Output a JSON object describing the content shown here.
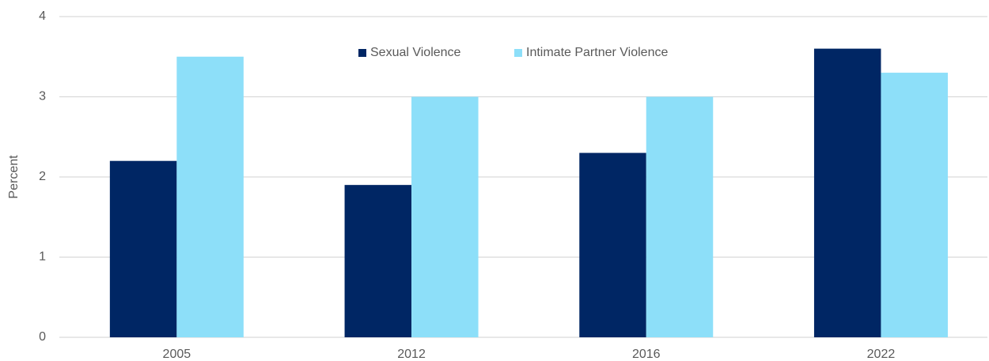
{
  "chart_data": {
    "type": "bar",
    "y_label": "Percent",
    "categories": [
      "2005",
      "2012",
      "2016",
      "2022"
    ],
    "series": [
      {
        "name": "Sexual Violence",
        "color": "#002664",
        "values": [
          2.2,
          1.9,
          2.3,
          3.6
        ]
      },
      {
        "name": "Intimate Partner Violence",
        "color": "#8ddff9",
        "values": [
          3.5,
          3.0,
          3.0,
          3.3
        ]
      }
    ],
    "ylim": [
      0,
      4
    ],
    "yticks": [
      0,
      1,
      2,
      3,
      4
    ],
    "grid": true,
    "legend": "top"
  }
}
